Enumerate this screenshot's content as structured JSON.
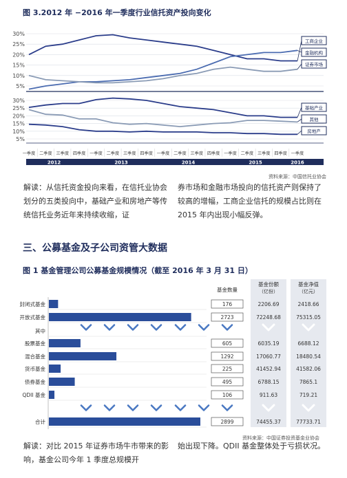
{
  "chart1": {
    "title": "图 3.2012 年 −2016 年一季度行业信托资产投向变化",
    "source": "资料来源：中国信托业协会",
    "quarters": [
      "一季度",
      "二季度",
      "三季度",
      "四季度",
      "一季度",
      "二季度",
      "三季度",
      "四季度",
      "一季度",
      "二季度",
      "三季度",
      "四季度",
      "一季度",
      "二季度",
      "三季度",
      "四季度",
      "一季度"
    ],
    "years": [
      "2012",
      "2013",
      "2014",
      "2015",
      "2016"
    ],
    "top_ticks": [
      "30%",
      "25%",
      "20%",
      "15%",
      "10%",
      "5%"
    ],
    "bottom_ticks": [
      "30%",
      "25%",
      "20%",
      "15%",
      "10%",
      "5%"
    ],
    "top_series": [
      {
        "name": "工商企业",
        "color": "#2a3c8a",
        "values": [
          20,
          24,
          25,
          27,
          29,
          29.5,
          28,
          27,
          26,
          25,
          24,
          22,
          20,
          18,
          18,
          17,
          17
        ]
      },
      {
        "name": "金融机构",
        "color": "#4a6bb0",
        "values": [
          3.5,
          5,
          6,
          7,
          7,
          7.5,
          8,
          9,
          10,
          11,
          13,
          16,
          19,
          20,
          21,
          21,
          22
        ]
      },
      {
        "name": "证券市场",
        "color": "#8a9bb5",
        "values": [
          10,
          8,
          7.5,
          7,
          6.5,
          6.5,
          7,
          7.5,
          8.5,
          10,
          11,
          13,
          14,
          13,
          12,
          12,
          13
        ]
      }
    ],
    "bottom_series": [
      {
        "name": "基础产业",
        "color": "#2a3c8a",
        "values": [
          25.5,
          27,
          28,
          28,
          30.5,
          31.5,
          31,
          30,
          28,
          26,
          25,
          24,
          22,
          20,
          20,
          19,
          19
        ]
      },
      {
        "name": "其他",
        "color": "#8a9bb5",
        "values": [
          24,
          21,
          20.5,
          18,
          18,
          15.5,
          14.5,
          15,
          14,
          13,
          14,
          15,
          15.5,
          17,
          17,
          16.5,
          16
        ]
      },
      {
        "name": "房地产",
        "color": "#2a3c8a",
        "values": [
          14.5,
          14,
          13,
          11,
          10,
          10,
          9.5,
          10,
          9.5,
          9.5,
          9.5,
          9,
          9,
          8.5,
          8.5,
          8,
          8
        ]
      }
    ]
  },
  "para1": {
    "left": "解读：从信托资金投向来看，在信托业协会划分的五类投向中，基础产业和房地产等传统信托业务近年来持续收缩，证",
    "right": "券市场和金融市场投向的信托资产则保持了较高的增幅，工商企业信托的规模占比则在 2015 年内出现小幅反弹。"
  },
  "section_heading": "三、公募基金及子公司资管大数据",
  "chart2": {
    "title": "图 1 基金管理公司公募基金规模情况（截至 2016 年 3 月 31 日）",
    "col_headers": {
      "count": "基金数量",
      "shares": "基金份额",
      "shares_unit": "（亿份）",
      "nav": "基金净值",
      "nav_unit": "（亿元）"
    },
    "source": "资料来源：中国证券投资基金业协会",
    "rows": [
      {
        "label": "封闭式基金",
        "count": "176",
        "shares": "2206.69",
        "nav": "2418.66",
        "value": 176
      },
      {
        "label": "开放式基金",
        "count": "2723",
        "shares": "72248.68",
        "nav": "75315.05",
        "value": 2723
      },
      {
        "label": "其中",
        "count": "",
        "shares": "",
        "nav": "",
        "value": 0
      },
      {
        "label": "股票基金",
        "count": "605",
        "shares": "6035.19",
        "nav": "6688.12",
        "value": 605
      },
      {
        "label": "混合基金",
        "count": "1292",
        "shares": "17060.77",
        "nav": "18480.54",
        "value": 1292
      },
      {
        "label": "货币基金",
        "count": "225",
        "shares": "41452.94",
        "nav": "41582.06",
        "value": 225
      },
      {
        "label": "债券基金",
        "count": "495",
        "shares": "6788.15",
        "nav": "7865.1",
        "value": 495
      },
      {
        "label": "QDII 基金",
        "count": "106",
        "shares": "911.63",
        "nav": "719.21",
        "value": 106
      },
      {
        "label": "合计",
        "count": "2899",
        "shares": "74455.37",
        "nav": "77733.71",
        "value": 2899
      }
    ]
  },
  "para2": {
    "left": "解读：对比 2015 年证券市场牛市带来的影响，基金公司今年 1 季度总规模开",
    "right": "始出现下降。QDII 基金整体处于亏损状况。"
  }
}
